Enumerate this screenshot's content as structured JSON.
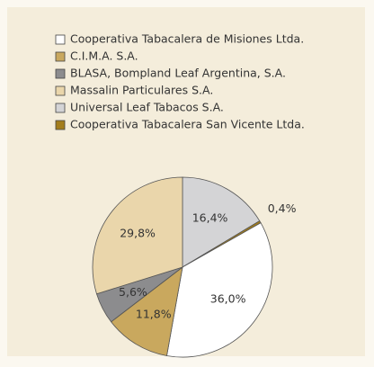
{
  "chart_data": {
    "type": "pie",
    "categories": [
      "Cooperativa Tabacalera de Misiones Ltda.",
      "C.I.M.A. S.A.",
      "BLASA, Bompland Leaf Argentina, S.A.",
      "Massalin Particulares S.A.",
      "Universal Leaf Tabacos S.A.",
      "Cooperativa Tabacalera San Vicente Ltda."
    ],
    "values": [
      36.0,
      11.8,
      5.6,
      29.8,
      16.4,
      0.4
    ],
    "value_labels": [
      "36,0%",
      "11,8%",
      "5,6%",
      "29,8%",
      "16,4%",
      "0,4%"
    ],
    "colors": [
      "#ffffff",
      "#c9a85e",
      "#8c8c8e",
      "#ead6ab",
      "#d4d4d6",
      "#a37d1c"
    ],
    "legend": "top"
  }
}
